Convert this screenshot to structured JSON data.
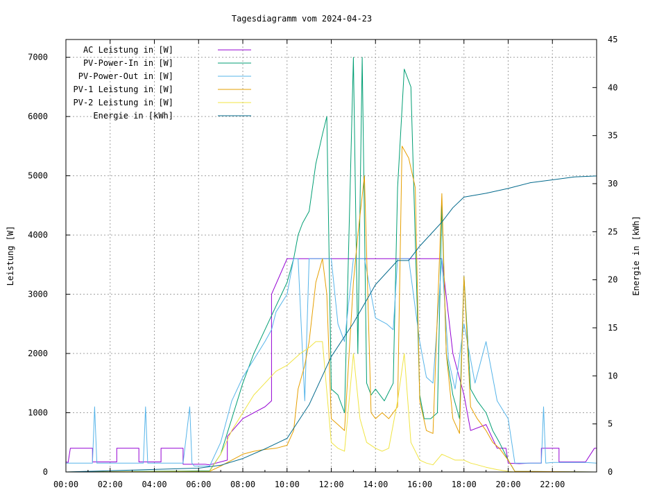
{
  "chart_data": {
    "type": "line",
    "title": "Tagesdiagramm vom 2024-04-23",
    "xlabel": "",
    "ylabel": "Leistung [W]",
    "y2label": "Energie in [kWh]",
    "x_ticks": [
      "00:00",
      "02:00",
      "04:00",
      "06:00",
      "08:00",
      "10:00",
      "12:00",
      "14:00",
      "16:00",
      "18:00",
      "20:00",
      "22:00"
    ],
    "y_ticks": [
      0,
      1000,
      2000,
      3000,
      4000,
      5000,
      6000,
      7000
    ],
    "y2_ticks": [
      0,
      5,
      10,
      15,
      20,
      25,
      30,
      35,
      40,
      45
    ],
    "xlim_hours": [
      0,
      24
    ],
    "ylim": [
      0,
      7300
    ],
    "y2lim": [
      0,
      45
    ],
    "grid": true,
    "legend_position": "top-left",
    "series": [
      {
        "name": "AC Leistung in [W]",
        "color": "#9400d3",
        "axis": "left",
        "x_hours": [
          0,
          0.1,
          0.2,
          1.2,
          1.2,
          2.3,
          2.3,
          3.3,
          3.3,
          4.3,
          4.3,
          5.3,
          5.3,
          6.3,
          6.5,
          7.3,
          7.3,
          8,
          9,
          9.3,
          9.3,
          10,
          10.5,
          11,
          11.5,
          12,
          12.5,
          13,
          13.5,
          14,
          14.5,
          15,
          15.5,
          16,
          16.5,
          17,
          17.5,
          18,
          18.3,
          19,
          19.5,
          19.9,
          20,
          20.5,
          21,
          21.5,
          21.5,
          22.3,
          22.3,
          23.5,
          23.9,
          24
        ],
        "values": [
          170,
          160,
          400,
          400,
          170,
          170,
          400,
          400,
          170,
          170,
          400,
          400,
          130,
          130,
          120,
          200,
          600,
          900,
          1100,
          1200,
          3000,
          3600,
          3600,
          3600,
          3600,
          3600,
          3600,
          3600,
          3600,
          3600,
          3600,
          3600,
          3600,
          3600,
          3600,
          3600,
          2000,
          1300,
          700,
          800,
          400,
          400,
          150,
          140,
          150,
          150,
          400,
          400,
          170,
          170,
          400,
          400
        ]
      },
      {
        "name": "PV-Power-In in [W]",
        "color": "#009e73",
        "axis": "left",
        "x_hours": [
          0,
          6.5,
          7,
          7.5,
          8,
          8.5,
          9,
          9.5,
          10,
          10.3,
          10.5,
          10.7,
          11,
          11.3,
          11.6,
          11.8,
          12,
          12.3,
          12.6,
          13,
          13.2,
          13.4,
          13.6,
          13.8,
          14,
          14.4,
          14.8,
          15,
          15.3,
          15.6,
          16,
          16.2,
          16.5,
          16.8,
          17,
          17.2,
          17.5,
          17.8,
          18,
          18.3,
          18.6,
          19,
          19.3,
          19.6,
          20,
          20.3,
          24
        ],
        "values": [
          0,
          20,
          300,
          900,
          1500,
          2000,
          2400,
          2800,
          3200,
          3600,
          4000,
          4200,
          4400,
          5200,
          5700,
          6000,
          1400,
          1300,
          1000,
          7000,
          2000,
          7000,
          1500,
          1300,
          1400,
          1200,
          1500,
          4800,
          6800,
          6500,
          1300,
          900,
          900,
          1000,
          4500,
          2000,
          1300,
          900,
          3300,
          1400,
          1200,
          1000,
          700,
          500,
          200,
          10,
          0
        ]
      },
      {
        "name": "PV-Power-Out in [W]",
        "color": "#56b4e9",
        "axis": "left",
        "x_hours": [
          0,
          1.2,
          1.3,
          1.4,
          3.5,
          3.6,
          3.7,
          5.3,
          5.6,
          5.7,
          5.8,
          6.5,
          7,
          7.5,
          8,
          8.5,
          9,
          9.3,
          9.5,
          10,
          10.3,
          10.5,
          10.8,
          11,
          11.5,
          12,
          12.3,
          12.6,
          13,
          13.5,
          14,
          14.5,
          14.8,
          15,
          15.5,
          16,
          16.3,
          16.6,
          17,
          17.3,
          17.6,
          18,
          18.5,
          19,
          19.5,
          20,
          20.3,
          21.5,
          21.6,
          21.7,
          22,
          23.5,
          24
        ],
        "values": [
          150,
          150,
          1100,
          150,
          150,
          1100,
          150,
          150,
          1100,
          150,
          100,
          100,
          500,
          1200,
          1600,
          1900,
          2200,
          2400,
          2700,
          3000,
          3600,
          3600,
          1200,
          3600,
          3600,
          3600,
          2500,
          2200,
          3600,
          3600,
          2600,
          2500,
          2400,
          3600,
          3600,
          2200,
          1600,
          1500,
          3600,
          1900,
          1400,
          2500,
          1500,
          2200,
          1200,
          900,
          150,
          150,
          1100,
          150,
          160,
          160,
          150
        ]
      },
      {
        "name": "PV-1 Leistung in [W]",
        "color": "#e69f00",
        "axis": "left",
        "x_hours": [
          0,
          6.5,
          7,
          7.5,
          8,
          8.5,
          9,
          9.5,
          10,
          10.3,
          10.5,
          10.8,
          11,
          11.3,
          11.6,
          11.8,
          12,
          12.3,
          12.6,
          13,
          13.2,
          13.5,
          13.8,
          14,
          14.3,
          14.6,
          15,
          15.2,
          15.5,
          15.8,
          16,
          16.3,
          16.6,
          17,
          17.2,
          17.5,
          17.8,
          18,
          18.3,
          18.6,
          19,
          19.3,
          19.6,
          20,
          20.3,
          24
        ],
        "values": [
          0,
          10,
          100,
          200,
          300,
          350,
          380,
          400,
          450,
          700,
          1400,
          1800,
          2200,
          3200,
          3600,
          3000,
          900,
          800,
          700,
          3200,
          4000,
          5000,
          1000,
          900,
          1000,
          900,
          1100,
          5500,
          5300,
          4800,
          1200,
          700,
          650,
          4700,
          2000,
          900,
          650,
          3300,
          1100,
          900,
          700,
          500,
          400,
          200,
          10,
          0
        ]
      },
      {
        "name": "PV-2 Leistung in [W]",
        "color": "#f0e442",
        "axis": "left",
        "x_hours": [
          0,
          6.5,
          7,
          7.5,
          8,
          8.5,
          9,
          9.5,
          10,
          10.3,
          10.6,
          11,
          11.3,
          11.6,
          12,
          12.3,
          12.6,
          13,
          13.3,
          13.6,
          14,
          14.3,
          14.6,
          15,
          15.3,
          15.6,
          16,
          16.3,
          16.6,
          17,
          17.3,
          17.6,
          18,
          18.3,
          18.6,
          19,
          19.5,
          20,
          20.3,
          24
        ],
        "values": [
          0,
          10,
          300,
          700,
          1000,
          1300,
          1500,
          1700,
          1800,
          1900,
          2000,
          2100,
          2200,
          2200,
          500,
          400,
          350,
          2000,
          900,
          500,
          400,
          350,
          400,
          1200,
          2000,
          500,
          200,
          150,
          120,
          300,
          250,
          200,
          200,
          150,
          120,
          80,
          40,
          10,
          0,
          0
        ]
      },
      {
        "name": "Energie in [kWh]",
        "color": "#00688b",
        "axis": "right",
        "x_hours": [
          0,
          6,
          7,
          8,
          9,
          10,
          11,
          12,
          13,
          14,
          15,
          15.5,
          16,
          17,
          17.5,
          18,
          19,
          20,
          21,
          22,
          23,
          24
        ],
        "values": [
          0,
          0.4,
          0.7,
          1.4,
          2.4,
          3.5,
          7.0,
          12.0,
          15.5,
          19.5,
          22.0,
          22.0,
          23.5,
          26.0,
          27.5,
          28.6,
          29.0,
          29.5,
          30.1,
          30.4,
          30.7,
          30.8
        ]
      }
    ]
  }
}
